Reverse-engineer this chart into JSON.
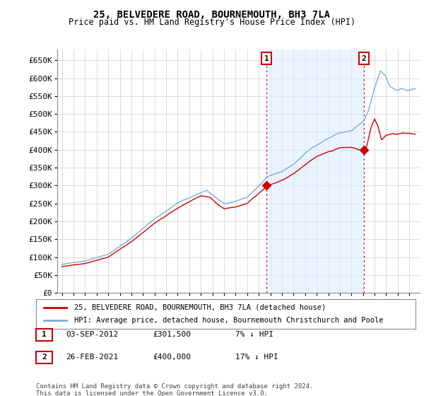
{
  "title": "25, BELVEDERE ROAD, BOURNEMOUTH, BH3 7LA",
  "subtitle": "Price paid vs. HM Land Registry's House Price Index (HPI)",
  "property_label": "25, BELVEDERE ROAD, BOURNEMOUTH, BH3 7LA (detached house)",
  "hpi_label": "HPI: Average price, detached house, Bournemouth Christchurch and Poole",
  "property_color": "#cc0000",
  "hpi_color": "#7aadd4",
  "sale1_date": "03-SEP-2012",
  "sale1_price": 301500,
  "sale2_date": "26-FEB-2021",
  "sale2_price": 400000,
  "sale1_pct": "7% ↓ HPI",
  "sale2_pct": "17% ↓ HPI",
  "footer": "Contains HM Land Registry data © Crown copyright and database right 2024.\nThis data is licensed under the Open Government Licence v3.0.",
  "ylim": [
    0,
    680000
  ],
  "yticks": [
    0,
    50000,
    100000,
    150000,
    200000,
    250000,
    300000,
    350000,
    400000,
    450000,
    500000,
    550000,
    600000,
    650000
  ],
  "background_color": "#ffffff",
  "grid_color": "#cccccc",
  "shade_color": "#ddeeff"
}
